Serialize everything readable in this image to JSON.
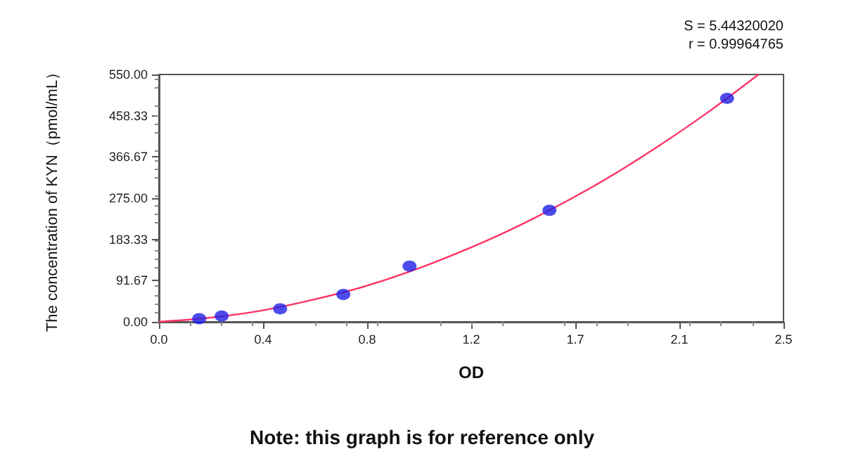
{
  "chart_data": {
    "type": "scatter",
    "xlabel": "OD",
    "ylabel": "The concentration of KYN（pmol/mL）",
    "annotations": [
      "S = 5.44320020",
      "r = 0.99964765",
      "Note: this graph is for reference only"
    ],
    "series": [
      {
        "color": "#1f1fe6",
        "marker": "circle",
        "x": [
          0.161,
          0.251,
          0.485,
          0.738,
          1.003,
          1.563,
          2.274
        ],
        "values": [
          7,
          13,
          29,
          61,
          124,
          248,
          497
        ]
      },
      {
        "type": "line",
        "color": "#ff3366",
        "marker": "none",
        "line_style": "solid",
        "x": [
          0,
          0.2,
          0.4,
          0.6,
          0.8,
          1.0,
          1.2,
          1.4,
          1.6,
          1.8,
          2.0,
          2.2,
          2.4
        ],
        "values": [
          0,
          9,
          24,
          47,
          75,
          111,
          154,
          203,
          259,
          321,
          391,
          467,
          550
        ]
      }
    ],
    "xlim": [
      0,
      2.5
    ],
    "xticks": [
      {
        "value": 0,
        "label": "0.0"
      },
      {
        "value": 0.4167,
        "label": "0.4"
      },
      {
        "value": 0.8333,
        "label": "0.8"
      },
      {
        "value": 1.25,
        "label": "1.2"
      },
      {
        "value": 1.6667,
        "label": "1.7"
      },
      {
        "value": 2.0833,
        "label": "2.1"
      },
      {
        "value": 2.5,
        "label": "2.5"
      }
    ],
    "ylim": [
      0,
      550
    ],
    "yticks": [
      {
        "value": 0,
        "label": "0.00"
      },
      {
        "value": 91.67,
        "label": "91.67"
      },
      {
        "value": 183.33,
        "label": "183.33"
      },
      {
        "value": 275,
        "label": "275.00"
      },
      {
        "value": 366.67,
        "label": "366.67"
      },
      {
        "value": 458.33,
        "label": "458.33"
      },
      {
        "value": 550,
        "label": "550.00"
      }
    ],
    "grid": false
  }
}
